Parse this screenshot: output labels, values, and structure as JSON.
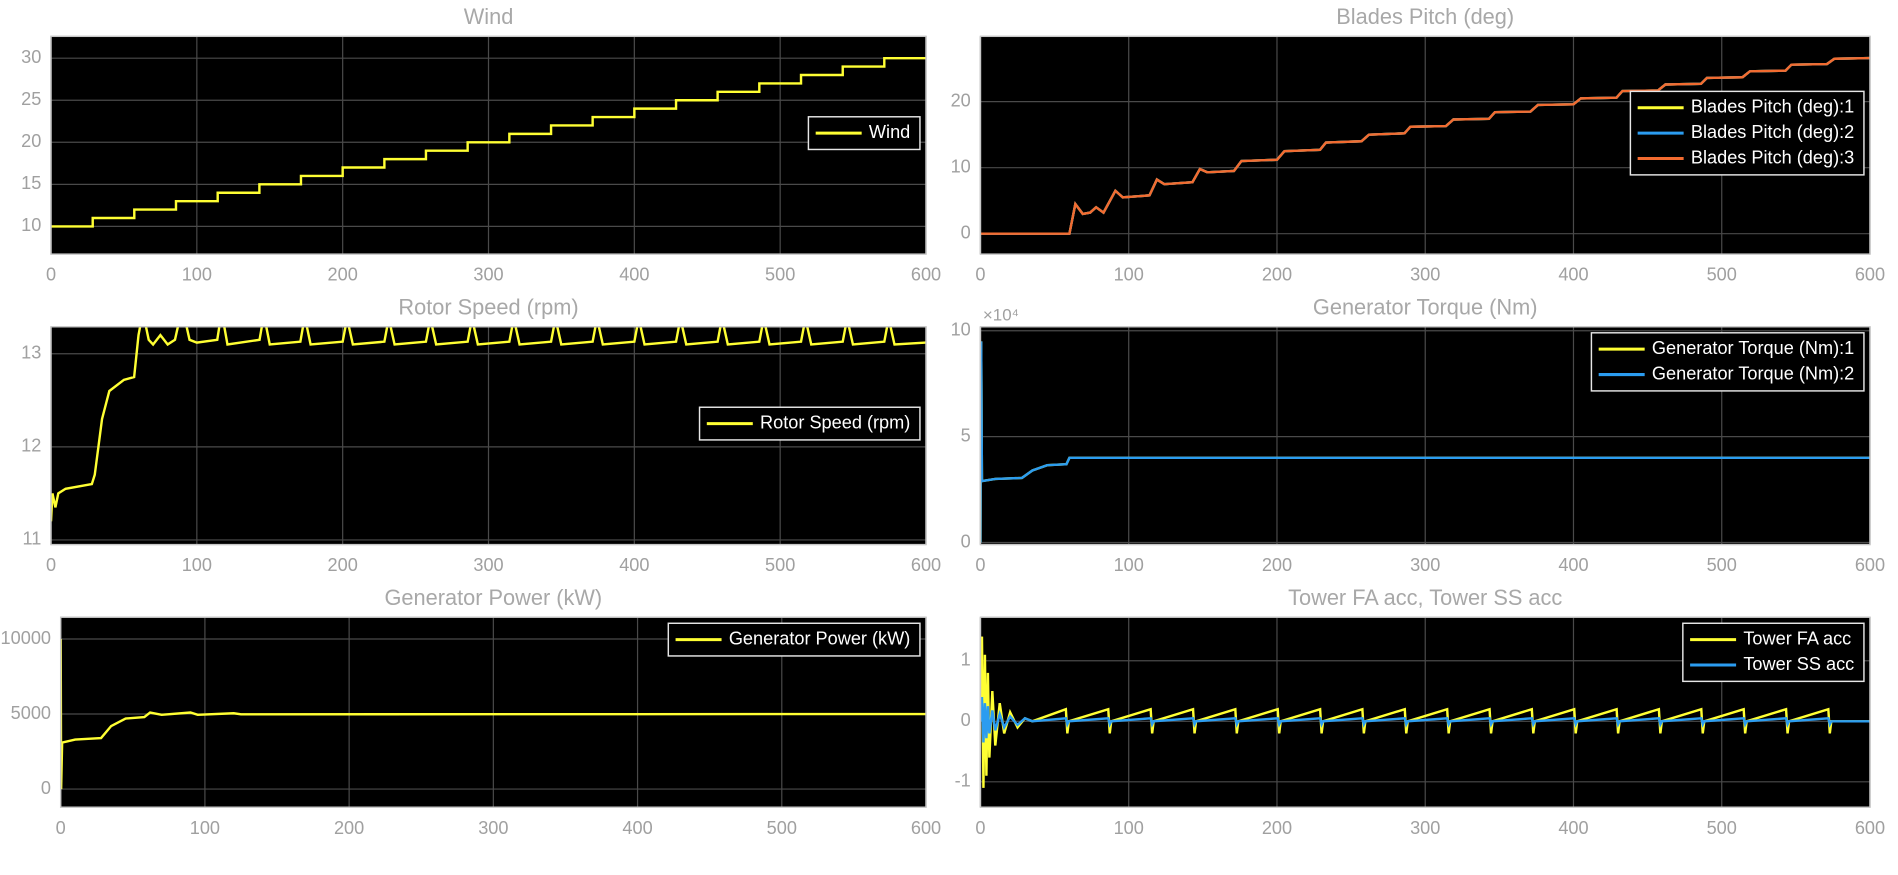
{
  "chart_data": [
    {
      "type": "line",
      "title": "Wind",
      "xlim": [
        0,
        600
      ],
      "xticks": [
        0,
        100,
        200,
        300,
        400,
        500,
        600
      ],
      "ylim": [
        6.7,
        32.6
      ],
      "yticks": [
        10,
        15,
        20,
        25,
        30
      ],
      "grid": true,
      "legend_location": "east",
      "x": [
        0,
        28.6,
        28.6,
        57.1,
        57.1,
        85.7,
        85.7,
        114.3,
        114.3,
        142.9,
        142.9,
        171.4,
        171.4,
        200,
        200,
        228.6,
        228.6,
        257.1,
        257.1,
        285.7,
        285.7,
        314.3,
        314.3,
        342.9,
        342.9,
        371.4,
        371.4,
        400,
        400,
        428.6,
        428.6,
        457.1,
        457.1,
        485.7,
        485.7,
        514.3,
        514.3,
        542.9,
        542.9,
        571.4,
        571.4,
        600
      ],
      "series": [
        {
          "name": "Wind",
          "color": "#ffff33",
          "values": [
            10,
            10,
            11,
            11,
            12,
            12,
            13,
            13,
            14,
            14,
            15,
            15,
            16,
            16,
            17,
            17,
            18,
            18,
            19,
            19,
            20,
            20,
            21,
            21,
            22,
            22,
            23,
            23,
            24,
            24,
            25,
            25,
            26,
            26,
            27,
            27,
            28,
            28,
            29,
            29,
            30,
            30
          ]
        }
      ]
    },
    {
      "type": "line",
      "title": "Blades Pitch (deg)",
      "xlim": [
        0,
        600
      ],
      "xticks": [
        0,
        100,
        200,
        300,
        400,
        500,
        600
      ],
      "ylim": [
        -3.1,
        29.9
      ],
      "yticks": [
        0,
        10,
        20
      ],
      "grid": true,
      "legend_location": "east",
      "x": [
        0,
        60,
        64,
        69,
        74,
        78,
        83,
        91,
        96,
        114,
        119,
        124,
        143,
        148,
        153,
        171,
        176,
        200,
        205,
        229,
        233,
        257,
        262,
        286,
        290,
        314,
        319,
        343,
        347,
        371,
        376,
        400,
        405,
        429,
        433,
        457,
        462,
        486,
        490,
        514,
        519,
        543,
        547,
        571,
        576,
        600
      ],
      "series": [
        {
          "name": "Blades Pitch (deg):1",
          "color": "#ffff33",
          "values": [
            0,
            0,
            4.5,
            3,
            3.2,
            4,
            3.2,
            6.5,
            5.5,
            5.8,
            8.2,
            7.5,
            7.8,
            9.8,
            9.3,
            9.5,
            11,
            11.2,
            12.5,
            12.7,
            13.8,
            14,
            15,
            15.2,
            16.2,
            16.3,
            17.3,
            17.4,
            18.4,
            18.5,
            19.5,
            19.6,
            20.5,
            20.6,
            21.6,
            21.7,
            22.6,
            22.7,
            23.6,
            23.7,
            24.6,
            24.7,
            25.6,
            25.7,
            26.5,
            26.6
          ]
        },
        {
          "name": "Blades Pitch (deg):2",
          "color": "#2b9cf0",
          "values": [
            0,
            0,
            4.5,
            3,
            3.2,
            4,
            3.2,
            6.5,
            5.5,
            5.8,
            8.2,
            7.5,
            7.8,
            9.8,
            9.3,
            9.5,
            11,
            11.2,
            12.5,
            12.7,
            13.8,
            14,
            15,
            15.2,
            16.2,
            16.3,
            17.3,
            17.4,
            18.4,
            18.5,
            19.5,
            19.6,
            20.5,
            20.6,
            21.6,
            21.7,
            22.6,
            22.7,
            23.6,
            23.7,
            24.6,
            24.7,
            25.6,
            25.7,
            26.5,
            26.6
          ]
        },
        {
          "name": "Blades Pitch (deg):3",
          "color": "#f26b30",
          "values": [
            0,
            0,
            4.5,
            3,
            3.2,
            4,
            3.2,
            6.5,
            5.5,
            5.8,
            8.2,
            7.5,
            7.8,
            9.8,
            9.3,
            9.5,
            11,
            11.2,
            12.5,
            12.7,
            13.8,
            14,
            15,
            15.2,
            16.2,
            16.3,
            17.3,
            17.4,
            18.4,
            18.5,
            19.5,
            19.6,
            20.5,
            20.6,
            21.6,
            21.7,
            22.6,
            22.7,
            23.6,
            23.7,
            24.6,
            24.7,
            25.6,
            25.7,
            26.5,
            26.6
          ]
        }
      ]
    },
    {
      "type": "line",
      "title": "Rotor Speed (rpm)",
      "xlim": [
        0,
        600
      ],
      "xticks": [
        0,
        100,
        200,
        300,
        400,
        500,
        600
      ],
      "ylim": [
        10.95,
        13.29
      ],
      "yticks": [
        11,
        12,
        13
      ],
      "grid": true,
      "legend_location": "east",
      "x": [
        0,
        1,
        3,
        5,
        10,
        28,
        30,
        35,
        40,
        50,
        57,
        60,
        63,
        67,
        70,
        75,
        80,
        85,
        90,
        95,
        100,
        114,
        117,
        121,
        143,
        146,
        150,
        171,
        174,
        178,
        200,
        203,
        207,
        228.6,
        231.6,
        235.6,
        257.1,
        260.1,
        264.1,
        285.7,
        288.7,
        292.7,
        314.3,
        317.3,
        321.3,
        342.9,
        345.9,
        349.9,
        371.4,
        374.4,
        378.4,
        400,
        403,
        407,
        428.6,
        431.6,
        435.6,
        457.1,
        460.1,
        464.1,
        485.7,
        488.7,
        492.7,
        514.3,
        517.3,
        521.3,
        542.9,
        545.9,
        549.9,
        571.4,
        574.4,
        578.4,
        600
      ],
      "series": [
        {
          "name": "Rotor Speed (rpm)",
          "color": "#ffff33",
          "values": [
            11.2,
            11.5,
            11.35,
            11.5,
            11.55,
            11.6,
            11.7,
            12.3,
            12.6,
            12.72,
            12.75,
            13.2,
            13.45,
            13.15,
            13.1,
            13.2,
            13.1,
            13.15,
            13.5,
            13.15,
            13.12,
            13.15,
            13.45,
            13.1,
            13.15,
            13.42,
            13.1,
            13.13,
            13.4,
            13.1,
            13.13,
            13.38,
            13.1,
            13.13,
            13.38,
            13.1,
            13.13,
            13.38,
            13.1,
            13.13,
            13.38,
            13.1,
            13.13,
            13.38,
            13.1,
            13.13,
            13.38,
            13.1,
            13.13,
            13.38,
            13.1,
            13.13,
            13.38,
            13.1,
            13.13,
            13.38,
            13.1,
            13.13,
            13.38,
            13.1,
            13.13,
            13.38,
            13.1,
            13.13,
            13.38,
            13.1,
            13.13,
            13.38,
            13.1,
            13.13,
            13.38,
            13.1,
            13.12
          ]
        }
      ]
    },
    {
      "type": "line",
      "title": "Generator Torque (Nm)",
      "xlim": [
        0,
        600
      ],
      "xticks": [
        0,
        100,
        200,
        300,
        400,
        500,
        600
      ],
      "ylim": [
        -1000,
        101900
      ],
      "yticks": [
        0,
        {
          "value": 50000,
          "label": "5"
        },
        {
          "value": 100000,
          "label": "10"
        }
      ],
      "y_multiplier": "×10⁴",
      "grid": true,
      "legend_location": "northeast",
      "x": [
        0,
        0.5,
        1,
        10,
        28,
        35,
        45,
        58,
        60,
        600
      ],
      "series": [
        {
          "name": "Generator Torque (Nm):1",
          "color": "#ffff33",
          "values": [
            0,
            95000,
            29000,
            30000,
            30500,
            34000,
            36500,
            37000,
            40000,
            40000
          ]
        },
        {
          "name": "Generator Torque (Nm):2",
          "color": "#2b9cf0",
          "values": [
            0,
            95000,
            29000,
            30000,
            30500,
            34000,
            36500,
            37000,
            40000,
            40000
          ]
        }
      ]
    },
    {
      "type": "line",
      "title": "Generator Power (kW)",
      "xlim": [
        0,
        600
      ],
      "xticks": [
        0,
        100,
        200,
        300,
        400,
        500,
        600
      ],
      "ylim": [
        -1210,
        11450
      ],
      "yticks": [
        0,
        5000,
        10000
      ],
      "grid": true,
      "legend_location": "northeast",
      "x": [
        0,
        0.3,
        1,
        10,
        28,
        35,
        45,
        58,
        62,
        70,
        90,
        95,
        120,
        125,
        600
      ],
      "series": [
        {
          "name": "Generator Power (kW)",
          "color": "#ffff33",
          "values": [
            10000,
            0,
            3100,
            3300,
            3400,
            4200,
            4700,
            4800,
            5100,
            4950,
            5100,
            4950,
            5050,
            4980,
            5000
          ]
        }
      ]
    },
    {
      "type": "line",
      "title": "Tower FA acc, Tower SS acc",
      "xlim": [
        0,
        600
      ],
      "xticks": [
        0,
        100,
        200,
        300,
        400,
        500,
        600
      ],
      "ylim": [
        -1.42,
        1.72
      ],
      "yticks": [
        -1,
        0,
        1
      ],
      "grid": true,
      "legend_location": "northeast",
      "x": [
        0,
        1,
        2,
        3,
        4,
        5,
        6,
        8,
        10,
        13,
        16,
        20,
        25,
        30,
        35,
        57.6,
        58.6,
        59.6,
        86.2,
        87.2,
        88.2,
        114.8,
        115.8,
        116.8,
        143.4,
        144.4,
        145.4,
        171.9,
        172.9,
        173.9,
        200.5,
        201.5,
        202.5,
        229.1,
        230.1,
        231.1,
        257.6,
        258.6,
        259.6,
        286.2,
        287.2,
        288.2,
        314.8,
        315.8,
        316.8,
        343.4,
        344.4,
        345.4,
        371.9,
        372.9,
        373.9,
        400.5,
        401.5,
        402.5,
        429.1,
        430.1,
        431.1,
        457.6,
        458.6,
        459.6,
        486.2,
        487.2,
        488.2,
        514.8,
        515.8,
        516.8,
        543.4,
        544.4,
        545.4,
        571.9,
        572.9,
        573.9,
        600
      ],
      "series": [
        {
          "name": "Tower FA acc",
          "color": "#ffff33",
          "values": [
            0,
            1.4,
            -1.1,
            1.1,
            -0.9,
            0.8,
            -0.6,
            0.5,
            -0.4,
            0.3,
            -0.2,
            0.15,
            -0.1,
            0.05,
            0,
            0.2,
            -0.2,
            0,
            0.2,
            -0.2,
            0,
            0.2,
            -0.2,
            0,
            0.2,
            -0.2,
            0,
            0.2,
            -0.2,
            0,
            0.2,
            -0.2,
            0,
            0.2,
            -0.2,
            0,
            0.2,
            -0.2,
            0,
            0.2,
            -0.2,
            0,
            0.2,
            -0.2,
            0,
            0.2,
            -0.2,
            0,
            0.2,
            -0.2,
            0,
            0.2,
            -0.2,
            0,
            0.2,
            -0.2,
            0,
            0.2,
            -0.2,
            0,
            0.2,
            -0.2,
            0,
            0.2,
            -0.2,
            0,
            0.2,
            -0.2,
            0,
            0.2,
            -0.2,
            0,
            0
          ]
        },
        {
          "name": "Tower SS acc",
          "color": "#2b9cf0",
          "values": [
            0,
            0.4,
            -0.35,
            0.3,
            -0.28,
            0.25,
            -0.2,
            0.18,
            -0.15,
            0.12,
            -0.1,
            0.08,
            -0.06,
            0.05,
            0,
            0.05,
            -0.05,
            0,
            0.05,
            -0.05,
            0,
            0.05,
            -0.05,
            0,
            0.05,
            -0.05,
            0,
            0.05,
            -0.05,
            0,
            0.05,
            -0.05,
            0,
            0.05,
            -0.05,
            0,
            0.05,
            -0.05,
            0,
            0.05,
            -0.05,
            0,
            0.05,
            -0.05,
            0,
            0.05,
            -0.05,
            0,
            0.05,
            -0.05,
            0,
            0.05,
            -0.05,
            0,
            0.05,
            -0.05,
            0,
            0.05,
            -0.05,
            0,
            0.05,
            -0.05,
            0,
            0.05,
            -0.05,
            0,
            0.05,
            -0.05,
            0,
            0.05,
            -0.05,
            0,
            0
          ]
        }
      ]
    }
  ]
}
